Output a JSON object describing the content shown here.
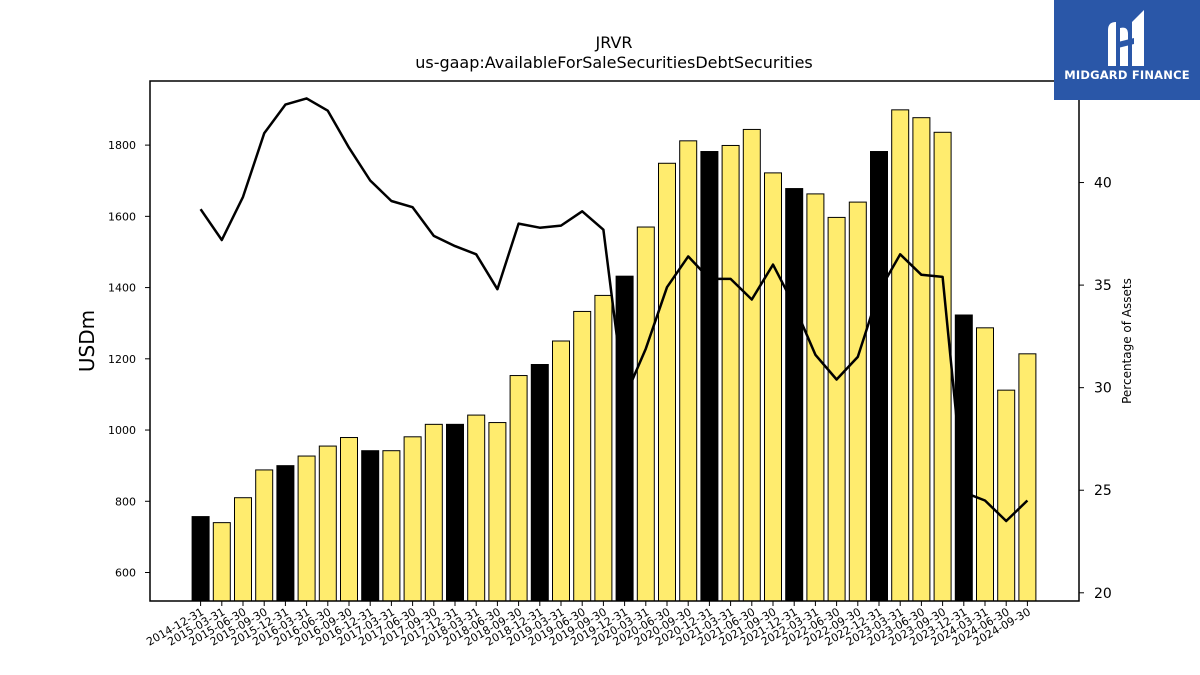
{
  "chart_data": {
    "type": "bar",
    "title": "JRVR",
    "subtitle": "us-gaap:AvailableForSaleSecuritiesDebtSecurities",
    "ylabel": "USDm",
    "y2label": "Percentage of Assets",
    "ylim": [
      520,
      1980
    ],
    "y2lim": [
      19.6,
      44.95
    ],
    "yticks": [
      600,
      800,
      1000,
      1200,
      1400,
      1600,
      1800
    ],
    "y2ticks": [
      20,
      25,
      30,
      35,
      40
    ],
    "grid": false,
    "categories": [
      "2014-12-31",
      "2015-03-31",
      "2015-06-30",
      "2015-09-30",
      "2015-12-31",
      "2016-03-31",
      "2016-06-30",
      "2016-09-30",
      "2016-12-31",
      "2017-03-31",
      "2017-06-30",
      "2017-09-30",
      "2017-12-31",
      "2018-03-31",
      "2018-06-30",
      "2018-09-30",
      "2018-12-31",
      "2019-03-31",
      "2019-06-30",
      "2019-09-30",
      "2019-12-31",
      "2020-03-31",
      "2020-06-30",
      "2020-09-30",
      "2020-12-31",
      "2021-03-31",
      "2021-06-30",
      "2021-09-30",
      "2021-12-31",
      "2022-03-31",
      "2022-06-30",
      "2022-09-30",
      "2022-12-31",
      "2023-03-31",
      "2023-06-30",
      "2023-09-30",
      "2023-12-31",
      "2024-03-31",
      "2024-06-30",
      "2024-09-30"
    ],
    "series": [
      {
        "type": "bar",
        "values": [
          757,
          740,
          810,
          888,
          900,
          927,
          955,
          979,
          942,
          942,
          981,
          1016,
          1016,
          1042,
          1021,
          1153,
          1184,
          1250,
          1333,
          1378,
          1432,
          1570,
          1749,
          1812,
          1782,
          1799,
          1844,
          1722,
          1678,
          1663,
          1597,
          1640,
          1782,
          1899,
          1877,
          1836,
          1323,
          1287,
          1112,
          1214
        ],
        "colors": [
          "#000000",
          "#ffec6e",
          "#ffec6e",
          "#ffec6e",
          "#000000",
          "#ffec6e",
          "#ffec6e",
          "#ffec6e",
          "#000000",
          "#ffec6e",
          "#ffec6e",
          "#ffec6e",
          "#000000",
          "#ffec6e",
          "#ffec6e",
          "#ffec6e",
          "#000000",
          "#ffec6e",
          "#ffec6e",
          "#ffec6e",
          "#000000",
          "#ffec6e",
          "#ffec6e",
          "#ffec6e",
          "#000000",
          "#ffec6e",
          "#ffec6e",
          "#ffec6e",
          "#000000",
          "#ffec6e",
          "#ffec6e",
          "#ffec6e",
          "#000000",
          "#ffec6e",
          "#ffec6e",
          "#ffec6e",
          "#000000",
          "#ffec6e",
          "#ffec6e",
          "#ffec6e"
        ]
      },
      {
        "type": "line",
        "axis": "right",
        "values": [
          38.7,
          37.2,
          39.3,
          42.4,
          43.8,
          44.1,
          43.5,
          41.7,
          40.1,
          39.1,
          38.8,
          37.4,
          36.9,
          36.5,
          34.8,
          38.0,
          37.8,
          37.9,
          38.6,
          37.7,
          29.5,
          31.9,
          34.9,
          36.4,
          35.3,
          35.3,
          34.3,
          36.0,
          34.0,
          31.6,
          30.4,
          31.5,
          34.7,
          36.5,
          35.5,
          35.4,
          24.9,
          24.5,
          23.5,
          24.5
        ]
      }
    ]
  },
  "logo": {
    "text": "MIDGARD FINANCE"
  },
  "colors": {
    "bar_fill": "#ffec6e",
    "bar_highlight": "#000000",
    "line": "#000000",
    "logo_bg": "#2a57a8"
  }
}
